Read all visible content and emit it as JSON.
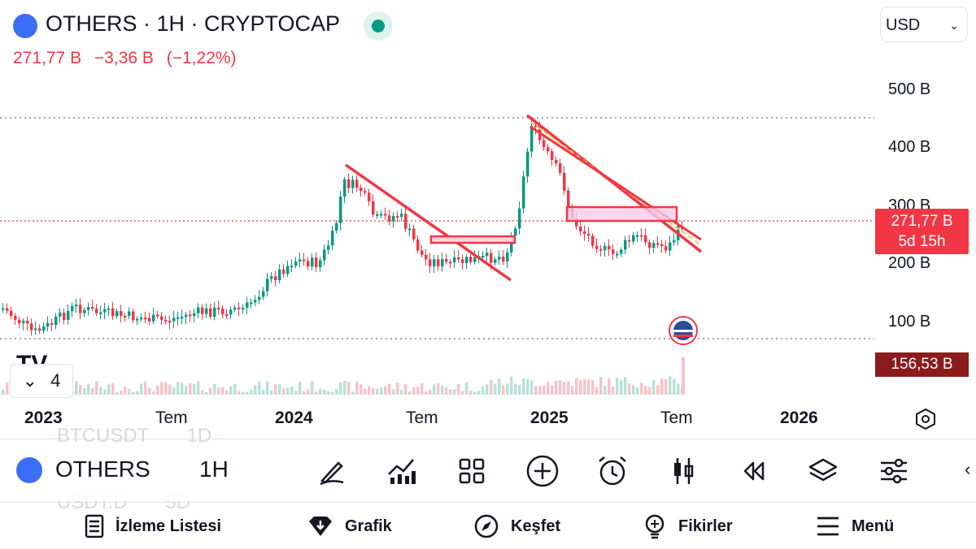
{
  "header": {
    "title": "OTHERS · 1H · CRYPTOCAP",
    "price": "271,77 B",
    "change": "−3,36 B",
    "change_pct": "(−1,22%)",
    "currency": "USD"
  },
  "axis": {
    "y_labels": [
      "500 B",
      "400 B",
      "300 B",
      "200 B",
      "100 B"
    ],
    "x_labels": [
      {
        "text": "2023",
        "bold": true
      },
      {
        "text": "Tem",
        "bold": false
      },
      {
        "text": "2024",
        "bold": true
      },
      {
        "text": "Tem",
        "bold": false
      },
      {
        "text": "2025",
        "bold": true
      },
      {
        "text": "Tem",
        "bold": false
      },
      {
        "text": "2026",
        "bold": true
      }
    ]
  },
  "price_tag": {
    "value": "271,77 B",
    "countdown": "5d 15h"
  },
  "volume_tag": "156,53 B",
  "collapse": {
    "count": "4"
  },
  "toolbar": {
    "symbol": "OTHERS",
    "interval": "1H",
    "bg_symbol_top": "BTCUSDT",
    "bg_interval_top": "1D",
    "bg_symbol_bottom": "USDT.D",
    "bg_interval_bottom": "5D",
    "icons": [
      "pen-icon",
      "indicators-icon",
      "layout-icon",
      "add-icon",
      "alert-icon",
      "candles-icon",
      "replay-icon",
      "layers-icon",
      "settings-sliders-icon"
    ]
  },
  "bottom_nav": [
    {
      "label": "İzleme Listesi",
      "icon": "watchlist-icon"
    },
    {
      "label": "Grafik",
      "icon": "chart-icon"
    },
    {
      "label": "Keşfet",
      "icon": "explore-icon"
    },
    {
      "label": "Fikirler",
      "icon": "ideas-icon"
    },
    {
      "label": "Menü",
      "icon": "menu-icon"
    }
  ],
  "colors": {
    "up": "#089981",
    "down": "#f23645",
    "accent": "#3b6ef5"
  }
}
